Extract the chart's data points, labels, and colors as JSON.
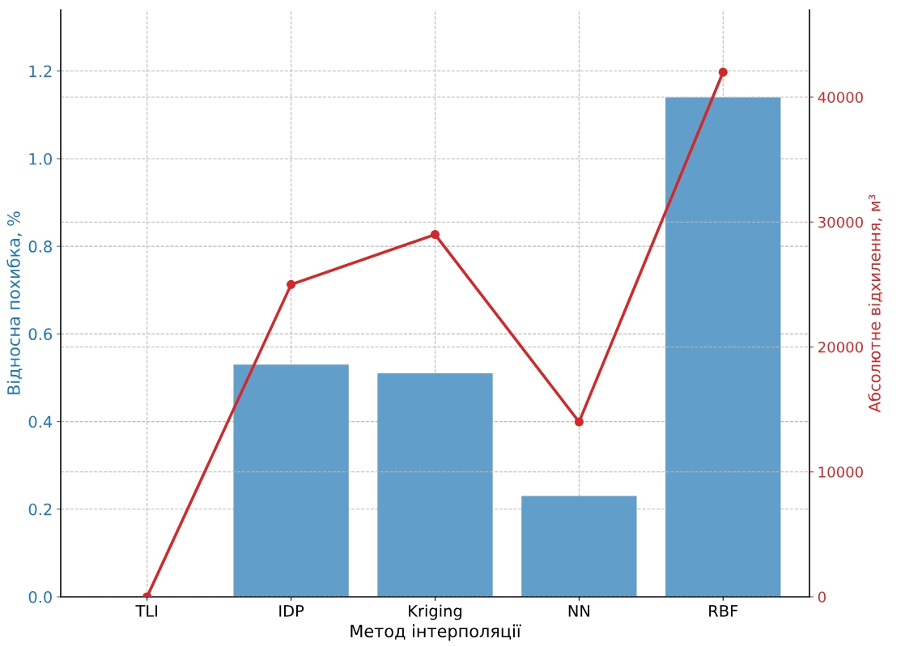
{
  "chart_data": {
    "type": "bar",
    "xlabel": "Метод інтерполяції",
    "ylabel": "Відносна похибка, %",
    "y2label": "Абсолютне відхилення, м³",
    "categories": [
      "TLI",
      "IDP",
      "Kriging",
      "NN",
      "RBF"
    ],
    "series": [
      {
        "color": "#619fca",
        "values": [
          0,
          0.53,
          0.51,
          0.23,
          1.14
        ]
      },
      {
        "type": "line",
        "axis": "y2",
        "color": "#d62728",
        "marker": "circle",
        "values": [
          0,
          25000,
          29000,
          14000,
          42000
        ]
      }
    ],
    "ylim": [
      0,
      1.34
    ],
    "yticks": [
      {
        "value": 0,
        "label": "0.0"
      },
      0.2,
      0.4,
      0.6,
      0.8,
      {
        "value": 1,
        "label": "1.0"
      },
      1.2
    ],
    "y2lim": [
      0,
      47000
    ],
    "y2ticks": [
      0,
      10000,
      20000,
      30000,
      40000
    ],
    "grid": true
  }
}
